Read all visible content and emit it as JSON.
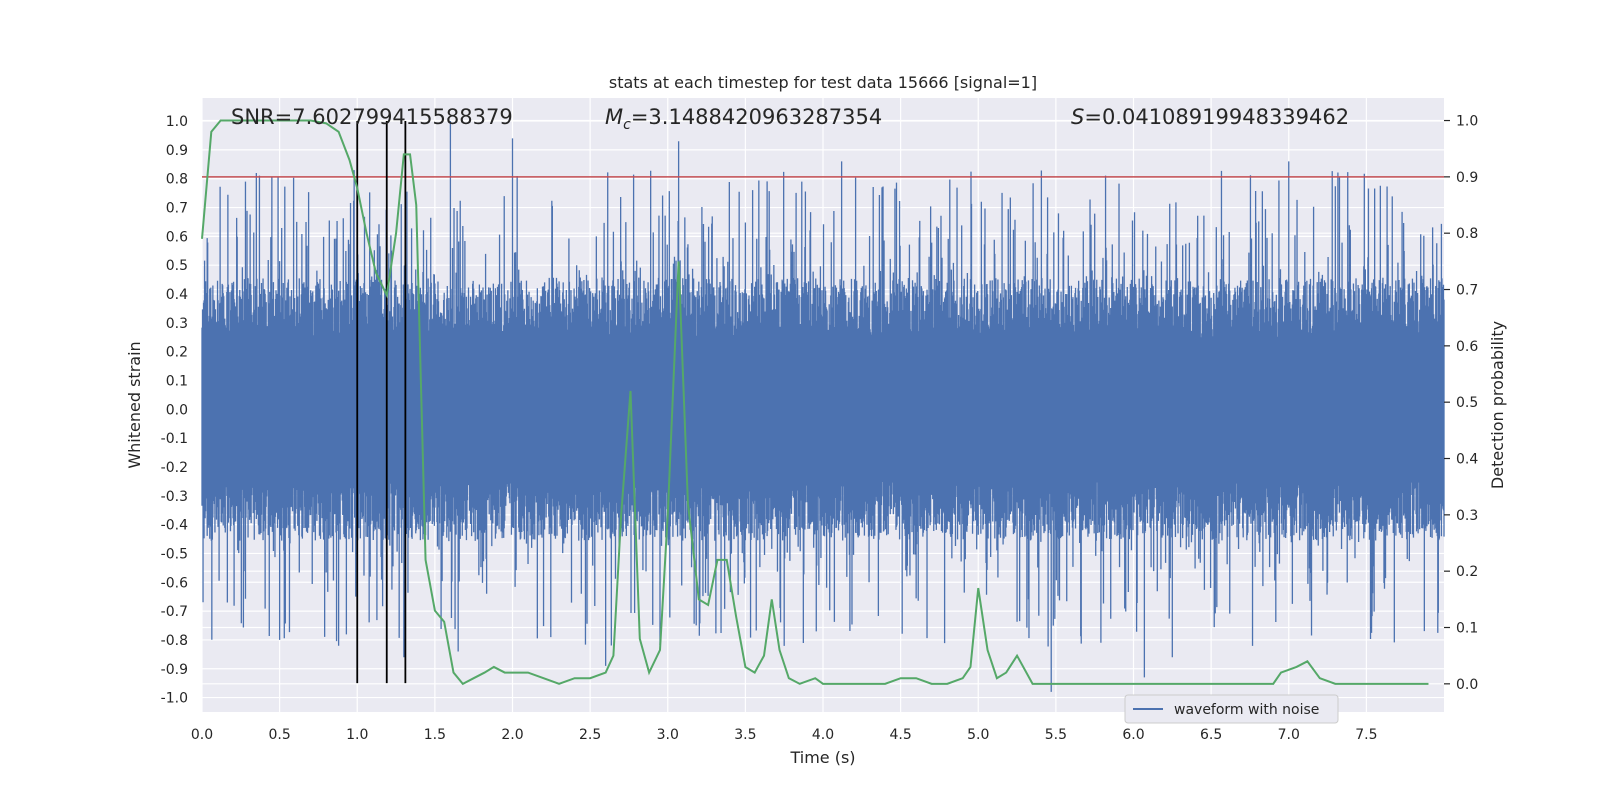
{
  "chart_data": {
    "type": "line",
    "title": "stats at each timestep for test data 15666 [signal=1]",
    "xlabel": "Time (s)",
    "ylabel": "Whitened strain",
    "ylabel_right": "Detection probability",
    "xlim": [
      0.0,
      8.0
    ],
    "ylim": [
      -1.05,
      1.08
    ],
    "ylim_right": [
      -0.05,
      1.04
    ],
    "x_ticks": [
      "0.0",
      "0.5",
      "1.0",
      "1.5",
      "2.0",
      "2.5",
      "3.0",
      "3.5",
      "4.0",
      "4.5",
      "5.0",
      "5.5",
      "6.0",
      "6.5",
      "7.0",
      "7.5"
    ],
    "y_ticks": [
      "1.0",
      "0.9",
      "0.8",
      "0.7",
      "0.6",
      "0.5",
      "0.4",
      "0.3",
      "0.2",
      "0.1",
      "0.0",
      "-0.1",
      "-0.2",
      "-0.3",
      "-0.4",
      "-0.5",
      "-0.6",
      "-0.7",
      "-0.8",
      "-0.9",
      "-1.0"
    ],
    "y_ticks_right": [
      "1.0",
      "0.9",
      "0.8",
      "0.7",
      "0.6",
      "0.5",
      "0.4",
      "0.3",
      "0.2",
      "0.1",
      "0.0"
    ],
    "annotations": {
      "snr_label": "SNR=7.602799415588379",
      "mc_symbol": "M",
      "mc_sub": "c",
      "mc_value": "=3.1488420963287354",
      "s_symbol": "S",
      "s_value": "=0.04108919948339462"
    },
    "threshold": {
      "right_axis_value": 0.9,
      "color": "#c44e52"
    },
    "vlines": {
      "x": [
        1.0,
        1.19,
        1.31
      ],
      "ymin": -0.95,
      "ymax": 1.0,
      "color": "#000000"
    },
    "legend": {
      "label": "waveform with noise",
      "placement": "lower-right"
    },
    "series": [
      {
        "name": "waveform with noise",
        "axis": "left",
        "style": "dense noise",
        "color": "#4c72b0",
        "base_amplitude": 0.38,
        "peaks": [
          {
            "x": 0.28,
            "y": 0.79
          },
          {
            "x": 0.35,
            "y": 0.82
          },
          {
            "x": 0.98,
            "y": 0.83
          },
          {
            "x": 1.6,
            "y": 1.0
          },
          {
            "x": 2.0,
            "y": 0.94
          },
          {
            "x": 3.07,
            "y": 0.93
          },
          {
            "x": 4.12,
            "y": 0.86
          },
          {
            "x": 7.0,
            "y": 0.86
          },
          {
            "x": 0.5,
            "y": -0.8
          },
          {
            "x": 0.88,
            "y": -0.82
          },
          {
            "x": 1.3,
            "y": -0.86
          },
          {
            "x": 1.65,
            "y": -0.84
          },
          {
            "x": 2.6,
            "y": -0.89
          },
          {
            "x": 5.47,
            "y": -0.98
          },
          {
            "x": 6.07,
            "y": -0.93
          },
          {
            "x": 6.25,
            "y": -0.86
          }
        ]
      },
      {
        "name": "detection probability",
        "axis": "right",
        "color": "#55a868",
        "x": [
          0.0,
          0.06,
          0.12,
          0.2,
          0.3,
          0.4,
          0.5,
          0.6,
          0.7,
          0.8,
          0.88,
          0.95,
          1.0,
          1.06,
          1.12,
          1.19,
          1.25,
          1.3,
          1.34,
          1.38,
          1.44,
          1.5,
          1.56,
          1.62,
          1.68,
          1.75,
          1.82,
          1.88,
          1.95,
          2.0,
          2.1,
          2.2,
          2.3,
          2.4,
          2.5,
          2.6,
          2.65,
          2.7,
          2.76,
          2.82,
          2.88,
          2.95,
          3.0,
          3.07,
          3.13,
          3.2,
          3.26,
          3.32,
          3.38,
          3.44,
          3.5,
          3.56,
          3.62,
          3.67,
          3.72,
          3.78,
          3.85,
          3.95,
          4.0,
          4.1,
          4.2,
          4.4,
          4.5,
          4.6,
          4.7,
          4.8,
          4.9,
          4.95,
          5.0,
          5.06,
          5.12,
          5.18,
          5.25,
          5.35,
          5.45,
          5.6,
          5.8,
          6.0,
          6.2,
          6.5,
          6.8,
          6.9,
          6.95,
          7.05,
          7.12,
          7.2,
          7.3,
          7.5,
          7.7,
          7.9
        ],
        "y": [
          0.79,
          0.98,
          1.0,
          1.0,
          1.0,
          1.0,
          1.0,
          1.0,
          1.0,
          0.995,
          0.98,
          0.93,
          0.88,
          0.8,
          0.73,
          0.69,
          0.8,
          0.94,
          0.94,
          0.85,
          0.22,
          0.13,
          0.11,
          0.02,
          0.0,
          0.01,
          0.02,
          0.03,
          0.02,
          0.02,
          0.02,
          0.01,
          0.0,
          0.01,
          0.01,
          0.02,
          0.05,
          0.3,
          0.52,
          0.08,
          0.02,
          0.06,
          0.3,
          0.75,
          0.32,
          0.15,
          0.14,
          0.22,
          0.22,
          0.12,
          0.03,
          0.02,
          0.05,
          0.15,
          0.06,
          0.01,
          0.0,
          0.01,
          0.0,
          0.0,
          0.0,
          0.0,
          0.01,
          0.01,
          0.0,
          0.0,
          0.01,
          0.03,
          0.17,
          0.06,
          0.01,
          0.02,
          0.05,
          0.0,
          0.0,
          0.0,
          0.0,
          0.0,
          0.0,
          0.0,
          0.0,
          0.0,
          0.02,
          0.03,
          0.04,
          0.01,
          0.0,
          0.0,
          0.0,
          0.0
        ]
      }
    ]
  }
}
